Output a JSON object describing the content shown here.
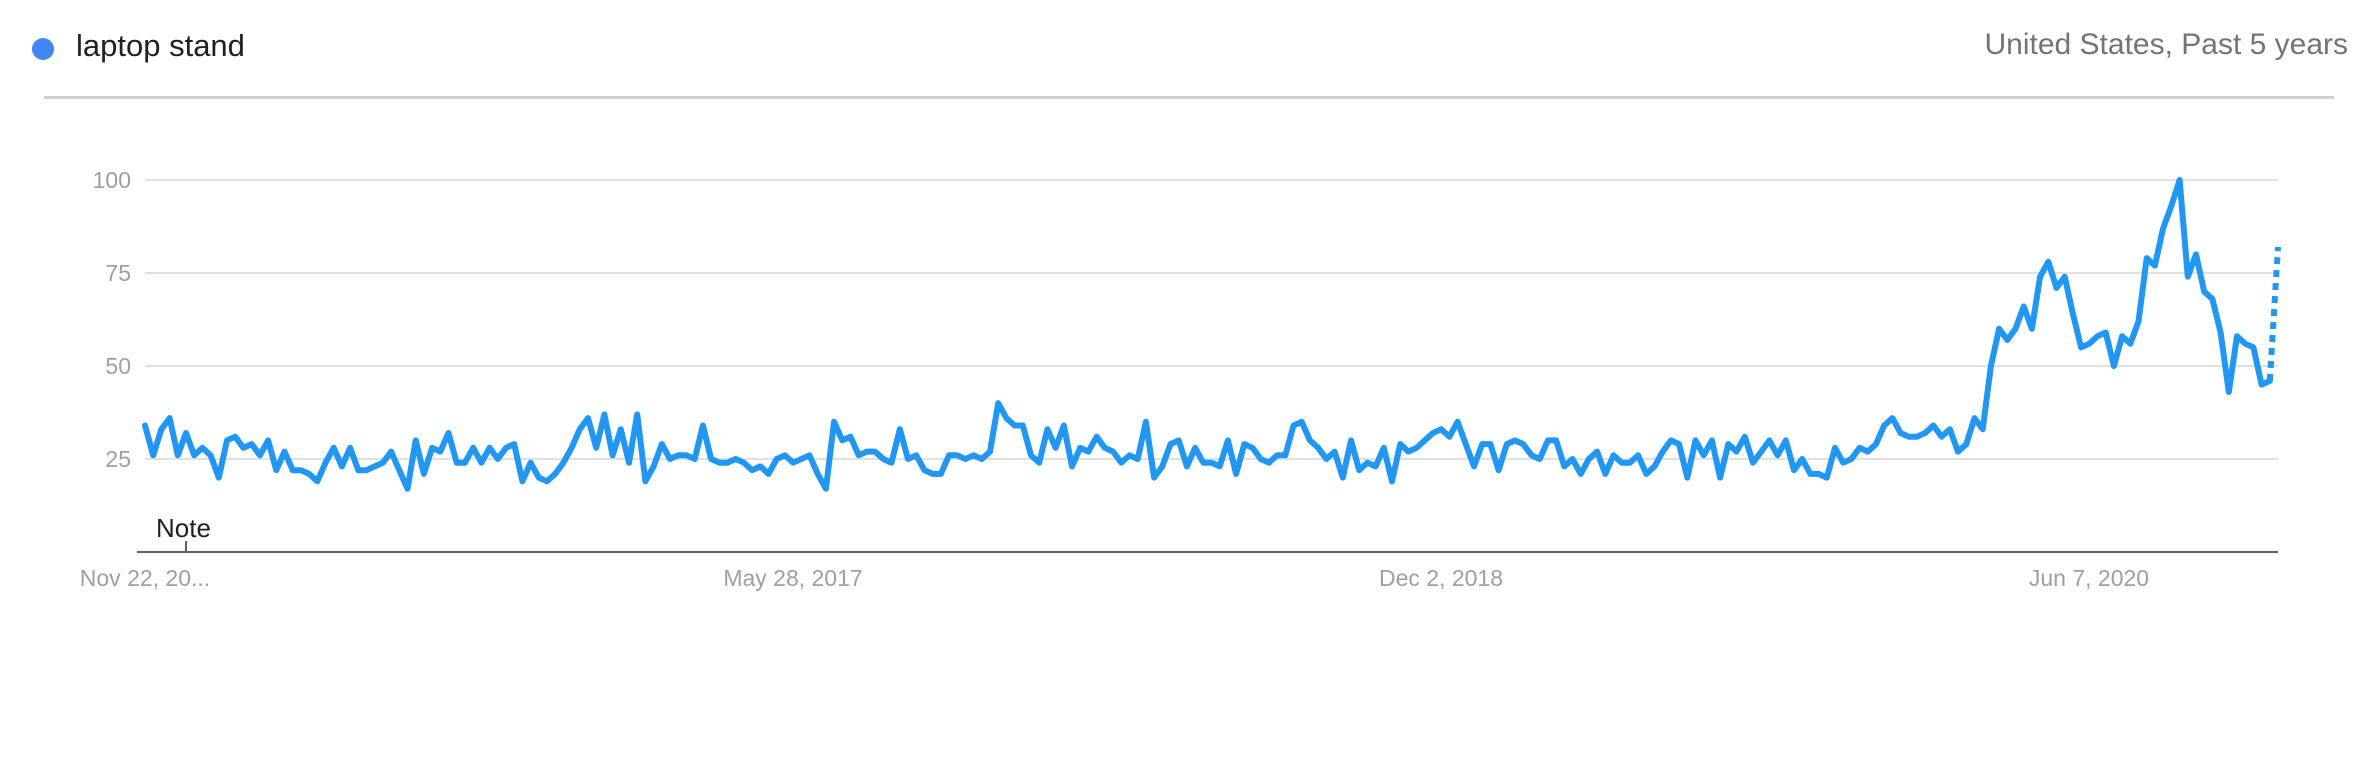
{
  "header": {
    "term": "laptop stand",
    "scope": "United States, Past 5 years"
  },
  "colors": {
    "series": "#2196f3",
    "dot": "#4285f4",
    "grid": "#e0e0e0",
    "axis": "#5f6368"
  },
  "note_label": "Note",
  "chart_data": {
    "type": "line",
    "title": "",
    "xlabel": "",
    "ylabel": "",
    "ylim": [
      0,
      100
    ],
    "yticks": [
      25,
      50,
      75,
      100
    ],
    "xtick_labels": [
      "Nov 22, 20...",
      "May 28, 2017",
      "Dec 2, 2018",
      "Jun 7, 2020"
    ],
    "grid": true,
    "partial_last_point": true,
    "series": [
      {
        "name": "laptop stand",
        "values": [
          34,
          26,
          33,
          36,
          26,
          32,
          26,
          28,
          26,
          20,
          30,
          31,
          28,
          29,
          26,
          30,
          22,
          27,
          22,
          22,
          21,
          19,
          24,
          28,
          23,
          28,
          22,
          22,
          23,
          24,
          27,
          22,
          17,
          30,
          21,
          28,
          27,
          32,
          24,
          24,
          28,
          24,
          28,
          25,
          28,
          29,
          19,
          24,
          20,
          19,
          21,
          24,
          28,
          33,
          36,
          28,
          37,
          26,
          33,
          24,
          37,
          19,
          23,
          29,
          25,
          26,
          26,
          25,
          34,
          25,
          24,
          24,
          25,
          24,
          22,
          23,
          21,
          25,
          26,
          24,
          25,
          26,
          21,
          17,
          35,
          30,
          31,
          26,
          27,
          27,
          25,
          24,
          33,
          25,
          26,
          22,
          21,
          21,
          26,
          26,
          25,
          26,
          25,
          27,
          40,
          36,
          34,
          34,
          26,
          24,
          33,
          28,
          34,
          23,
          28,
          27,
          31,
          28,
          27,
          24,
          26,
          25,
          35,
          20,
          23,
          29,
          30,
          23,
          28,
          24,
          24,
          23,
          30,
          21,
          29,
          28,
          25,
          24,
          26,
          26,
          34,
          35,
          30,
          28,
          25,
          27,
          20,
          30,
          22,
          24,
          23,
          28,
          19,
          29,
          27,
          28,
          30,
          32,
          33,
          31,
          35,
          29,
          23,
          29,
          29,
          22,
          29,
          30,
          29,
          26,
          25,
          30,
          30,
          23,
          25,
          21,
          25,
          27,
          21,
          26,
          24,
          24,
          26,
          21,
          23,
          27,
          30,
          29,
          20,
          30,
          26,
          30,
          20,
          29,
          27,
          31,
          24,
          27,
          30,
          26,
          30,
          22,
          25,
          21,
          21,
          20,
          28,
          24,
          25,
          28,
          27,
          29,
          34,
          36,
          32,
          31,
          31,
          32,
          34,
          31,
          33,
          27,
          29,
          36,
          33,
          50,
          60,
          57,
          60,
          66,
          60,
          74,
          78,
          71,
          74,
          64,
          55,
          56,
          58,
          59,
          50,
          58,
          56,
          62,
          79,
          77,
          87,
          93,
          100,
          74,
          80,
          70,
          68,
          59,
          43,
          58,
          56,
          55,
          45,
          46,
          82
        ]
      }
    ]
  }
}
